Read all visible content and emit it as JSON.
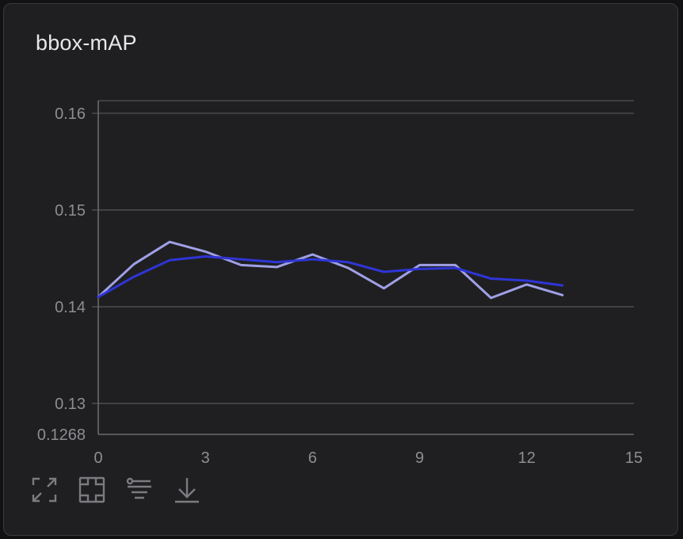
{
  "panel": {
    "title": "bbox-mAP"
  },
  "toolbar": {
    "items": [
      {
        "name": "expand-icon"
      },
      {
        "name": "fit-domain-icon"
      },
      {
        "name": "filter-icon"
      },
      {
        "name": "download-icon"
      }
    ]
  },
  "colors": {
    "background": "#1f1f21",
    "raw": "#9fa0e6",
    "smoothed": "#2f35d6",
    "grid": "#4a4a4e",
    "axis": "#6a6a6e"
  },
  "chart_data": {
    "type": "line",
    "title": "bbox-mAP",
    "xlabel": "",
    "ylabel": "",
    "xlim": [
      0,
      15
    ],
    "ylim": [
      0.1268,
      0.1613
    ],
    "x_ticks": [
      0,
      3,
      6,
      9,
      12,
      15
    ],
    "x_tick_labels": [
      "0",
      "3",
      "6",
      "9",
      "12",
      "15"
    ],
    "y_ticks": [
      0.1268,
      0.13,
      0.14,
      0.15,
      0.16
    ],
    "y_tick_labels": [
      "0.1268",
      "0.13",
      "0.14",
      "0.15",
      "0.16"
    ],
    "grid": "horizontal",
    "series": [
      {
        "color": "#9fa0e6",
        "x": [
          0,
          1,
          2,
          3,
          4,
          5,
          6,
          7,
          8,
          9,
          10,
          11,
          12,
          13
        ],
        "values": [
          0.141,
          0.1444,
          0.1467,
          0.1457,
          0.1443,
          0.1441,
          0.1454,
          0.144,
          0.1419,
          0.1443,
          0.1443,
          0.1409,
          0.1423,
          0.1412
        ]
      },
      {
        "color": "#2f35d6",
        "x": [
          0,
          1,
          2,
          3,
          4,
          5,
          6,
          7,
          8,
          9,
          10,
          11,
          12,
          13
        ],
        "values": [
          0.141,
          0.1431,
          0.1448,
          0.1452,
          0.1449,
          0.1446,
          0.1449,
          0.1446,
          0.1436,
          0.1439,
          0.144,
          0.1429,
          0.1427,
          0.1422
        ]
      }
    ]
  }
}
